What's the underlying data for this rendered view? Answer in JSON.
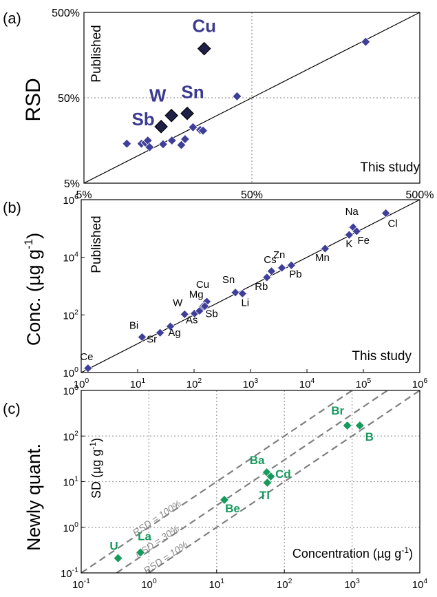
{
  "chart_data": [
    {
      "panel": "(a)",
      "type": "scatter",
      "xscale": "log",
      "yscale": "log",
      "xlim": [
        5,
        500
      ],
      "ylim": [
        5,
        500
      ],
      "xticks": [
        "5%",
        "50%",
        "500%"
      ],
      "yticks": [
        "5%",
        "50%",
        "500%"
      ],
      "ylabel": "RSD",
      "corner_label_y": "Published",
      "corner_label_x": "This study",
      "grid": true,
      "identity_line": true,
      "colors": {
        "points": "#3f3f9a",
        "highlight": "#1f1f47",
        "highlight_label": "#3b3b8f"
      },
      "points": [
        {
          "x": 9.0,
          "y": 14.5
        },
        {
          "x": 11.0,
          "y": 14.5
        },
        {
          "x": 11.6,
          "y": 14.9
        },
        {
          "x": 12.0,
          "y": 15.8
        },
        {
          "x": 12.3,
          "y": 13.2
        },
        {
          "x": 14.8,
          "y": 14.3
        },
        {
          "x": 16.7,
          "y": 15.8
        },
        {
          "x": 19.0,
          "y": 14.0
        },
        {
          "x": 20.0,
          "y": 16.4
        },
        {
          "x": 22.3,
          "y": 22.6
        },
        {
          "x": 24.6,
          "y": 21.0
        },
        {
          "x": 25.6,
          "y": 20.6
        },
        {
          "x": 40.8,
          "y": 52.0
        },
        {
          "x": 238,
          "y": 226
        }
      ],
      "highlighted": [
        {
          "label": "Cu",
          "x": 26.0,
          "y": 188
        },
        {
          "label": "W",
          "x": 16.6,
          "y": 31.0
        },
        {
          "label": "Sn",
          "x": 20.6,
          "y": 32.8
        },
        {
          "label": "Sb",
          "x": 14.4,
          "y": 23.0
        }
      ]
    },
    {
      "panel": "(b)",
      "type": "scatter",
      "xscale": "log",
      "yscale": "log",
      "xlim": [
        1,
        1000000
      ],
      "ylim": [
        1,
        1000000
      ],
      "xtick_exponents": [
        "0",
        "1",
        "2",
        "3",
        "4",
        "5",
        "6"
      ],
      "ytick_exponents": [
        "0",
        "2",
        "4",
        "6"
      ],
      "tick_base": "10",
      "ylabel_main": "Conc. (µg g",
      "ylabel_exp": "-1",
      "ylabel_end": ")",
      "corner_label_y": "Published",
      "corner_label_x": "This study",
      "identity_line": true,
      "colors": {
        "points": "#3f3f9a"
      },
      "points": [
        {
          "label": "Ce",
          "x": 1.32,
          "y": 1.41
        },
        {
          "label": "Bi",
          "x": 12.0,
          "y": 17.0
        },
        {
          "label": "Sr",
          "x": 25.0,
          "y": 24.0
        },
        {
          "label": "Ag",
          "x": 38.0,
          "y": 40.0
        },
        {
          "label": "W",
          "x": 68.0,
          "y": 105
        },
        {
          "label": "As",
          "x": 102,
          "y": 112
        },
        {
          "label": "",
          "x": 125,
          "y": 138
        },
        {
          "label": "Mg",
          "x": 145,
          "y": 200
        },
        {
          "label": "Cu",
          "x": 168,
          "y": 290
        },
        {
          "label": "Sb",
          "x": 155,
          "y": 200
        },
        {
          "label": "Sn",
          "x": 540,
          "y": 600
        },
        {
          "label": "Li",
          "x": 720,
          "y": 550
        },
        {
          "label": "Rb",
          "x": 1950,
          "y": 2000
        },
        {
          "label": "Cs",
          "x": 2350,
          "y": 3300
        },
        {
          "label": "Zn",
          "x": 3600,
          "y": 4300
        },
        {
          "label": "Pb",
          "x": 5300,
          "y": 5300
        },
        {
          "label": "Mn",
          "x": 21000,
          "y": 20000
        },
        {
          "label": "K",
          "x": 56000,
          "y": 60000
        },
        {
          "label": "Na",
          "x": 66000,
          "y": 110000
        },
        {
          "label": "Fe",
          "x": 76000,
          "y": 80000
        },
        {
          "label": "Cl",
          "x": 250000,
          "y": 340000
        }
      ]
    },
    {
      "panel": "(c)",
      "type": "scatter",
      "xscale": "log",
      "yscale": "log",
      "xlim": [
        0.1,
        10000
      ],
      "ylim": [
        0.1,
        1000
      ],
      "xtick_exponents": [
        "-1",
        "0",
        "1",
        "2",
        "3",
        "4"
      ],
      "ytick_exponents": [
        "-1",
        "0",
        "1",
        "2",
        "3"
      ],
      "tick_base": "10",
      "ylabel_outer": "Newly quant.",
      "inner_ylabel_main": "SD (µg g",
      "inner_ylabel_exp": "-1",
      "inner_ylabel_end": ")",
      "inner_xlabel_main": "Concentration (µg g",
      "inner_xlabel_exp": "-1",
      "inner_xlabel_end": ")",
      "grid": true,
      "colors": {
        "points": "#179a5c",
        "rsd_lines": "#7f7f7f"
      },
      "rsd_lines": [
        {
          "label": "RSD = 100%",
          "ratio": 1.0
        },
        {
          "label": "RSD = 30%",
          "ratio": 0.3
        },
        {
          "label": "RSD = 10%",
          "ratio": 0.1
        }
      ],
      "points": [
        {
          "label": "U",
          "x": 0.35,
          "y": 0.21
        },
        {
          "label": "La",
          "x": 0.75,
          "y": 0.28
        },
        {
          "label": "Be",
          "x": 13.0,
          "y": 4.0
        },
        {
          "label": "Ba",
          "x": 55.0,
          "y": 16.0
        },
        {
          "label": "Cd",
          "x": 63.0,
          "y": 13.0
        },
        {
          "label": "Tl",
          "x": 56.0,
          "y": 9.5
        },
        {
          "label": "Br",
          "x": 850,
          "y": 170
        },
        {
          "label": "B",
          "x": 1300,
          "y": 170
        }
      ]
    }
  ]
}
